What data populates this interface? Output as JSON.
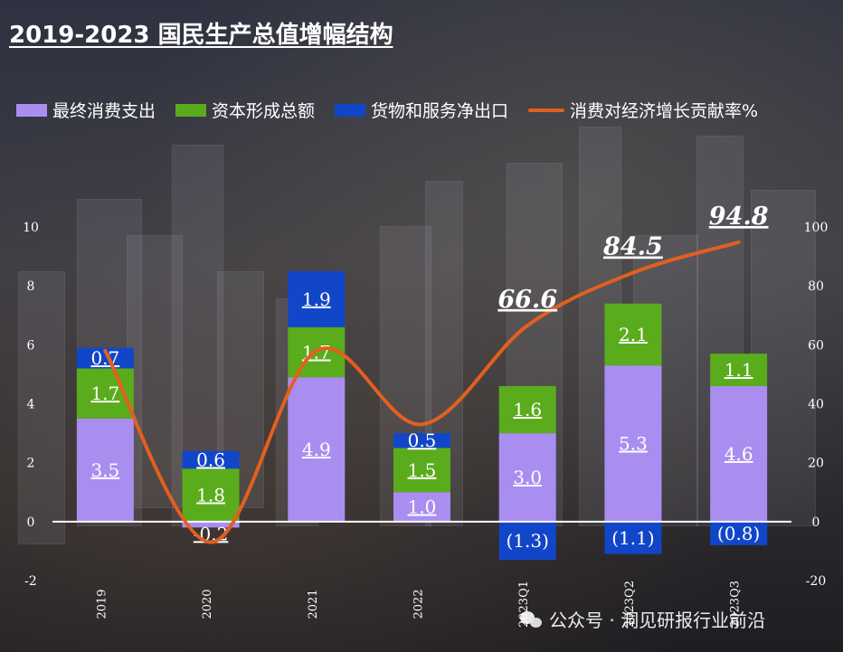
{
  "title": "2019-2023 国民生产总值增幅结构",
  "legend": [
    {
      "label": "最终消费支出",
      "color": "#a98ef0",
      "kind": "bar"
    },
    {
      "label": "资本形成总额",
      "color": "#5aac1c",
      "kind": "bar"
    },
    {
      "label": "货物和服务净出口",
      "color": "#1246c8",
      "kind": "bar"
    },
    {
      "label": "消费对经济增长贡献率%",
      "color": "#e2601f",
      "kind": "line"
    }
  ],
  "watermark": "公众号 · 洞见研报行业前沿",
  "chart_data": {
    "type": "bar",
    "stacked": true,
    "categories": [
      "2019",
      "2020",
      "2021",
      "2022",
      "2023Q1",
      "2023Q2",
      "2023Q3"
    ],
    "series": [
      {
        "name": "最终消费支出",
        "values": [
          3.5,
          -0.2,
          4.9,
          1.0,
          3.0,
          5.3,
          4.6
        ],
        "labels": [
          "3.5",
          "-0.2",
          "4.9",
          "1.0",
          "3.0",
          "5.3",
          "4.6"
        ]
      },
      {
        "name": "资本形成总额",
        "values": [
          1.7,
          1.8,
          1.7,
          1.5,
          1.6,
          2.1,
          1.1
        ],
        "labels": [
          "1.7",
          "1.8",
          "1.7",
          "1.5",
          "1.6",
          "2.1",
          "1.1"
        ]
      },
      {
        "name": "货物和服务净出口",
        "values": [
          0.7,
          0.6,
          1.9,
          0.5,
          -1.3,
          -1.1,
          -0.8
        ],
        "labels": [
          "0.7",
          "0.6",
          "1.9",
          "0.5",
          "(1.3)",
          "(1.1)",
          "(0.8)"
        ]
      }
    ],
    "line": {
      "name": "消费对经济增长贡献率%",
      "values": [
        58,
        -7,
        58,
        33,
        66.6,
        84.5,
        94.8
      ],
      "labels": [
        "",
        "",
        "",
        "",
        "66.6",
        "84.5",
        "94.8"
      ]
    },
    "y_left": {
      "min": -2,
      "max": 10,
      "ticks": [
        "-2",
        "0",
        "2",
        "4",
        "6",
        "8",
        "10"
      ]
    },
    "y_right": {
      "min": -20,
      "max": 100,
      "ticks": [
        "-20",
        "0",
        "20",
        "40",
        "60",
        "80",
        "100"
      ]
    }
  }
}
